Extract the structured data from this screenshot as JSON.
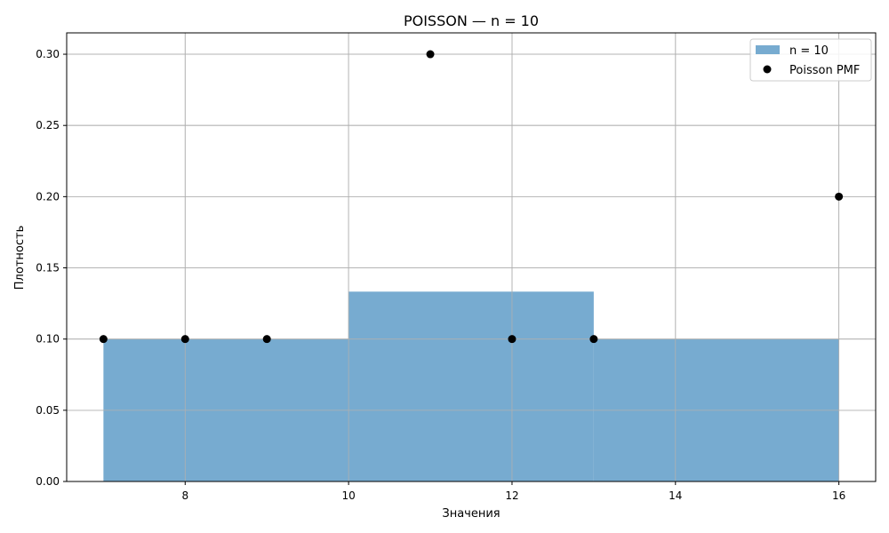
{
  "chart_data": {
    "type": "bar",
    "title": "POISSON — n = 10",
    "xlabel": "Значения",
    "ylabel": "Плотность",
    "xlim": [
      6.55,
      16.45
    ],
    "ylim": [
      0,
      0.315
    ],
    "xticks": [
      8,
      10,
      12,
      14,
      16
    ],
    "yticks": [
      0.0,
      0.05,
      0.1,
      0.15,
      0.2,
      0.25,
      0.3
    ],
    "ytick_labels": [
      "0.00",
      "0.05",
      "0.10",
      "0.15",
      "0.20",
      "0.25",
      "0.30"
    ],
    "grid": true,
    "legend_position": "top-right",
    "histogram": {
      "name": "n = 10",
      "color": "#77abd0",
      "bins": [
        {
          "x0": 7,
          "x1": 10,
          "value": 0.1
        },
        {
          "x0": 10,
          "x1": 13,
          "value": 0.1333
        },
        {
          "x0": 13,
          "x1": 16,
          "value": 0.1
        }
      ]
    },
    "points": {
      "name": "Poisson PMF",
      "color": "#000000",
      "x": [
        7,
        8,
        9,
        11,
        12,
        13,
        16
      ],
      "y": [
        0.1,
        0.1,
        0.1,
        0.3,
        0.1,
        0.1,
        0.2
      ]
    }
  }
}
